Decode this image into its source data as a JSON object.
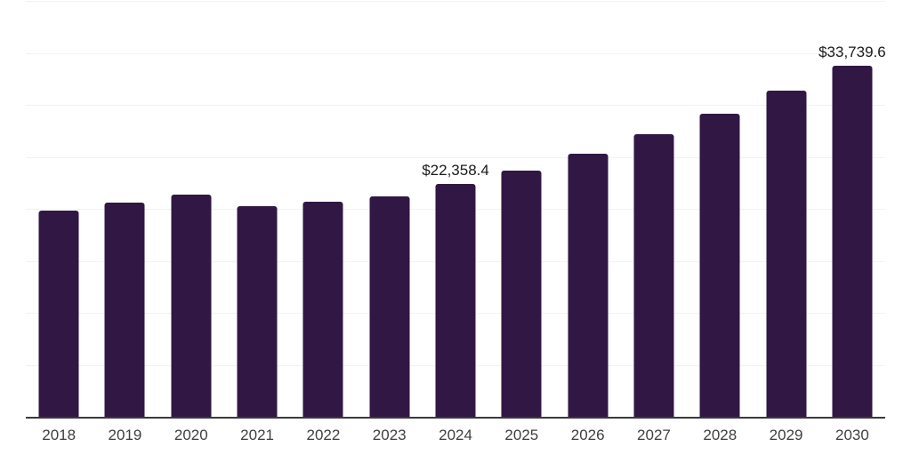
{
  "chart_data": {
    "type": "bar",
    "title": "",
    "xlabel": "",
    "ylabel": "",
    "categories": [
      "2018",
      "2019",
      "2020",
      "2021",
      "2022",
      "2023",
      "2024",
      "2025",
      "2026",
      "2027",
      "2028",
      "2029",
      "2030"
    ],
    "values": [
      19870,
      20640,
      21370,
      20260,
      20650,
      21240,
      22358.4,
      23680,
      25300,
      27220,
      29150,
      31410,
      33739.6
    ],
    "data_labels": [
      "",
      "",
      "",
      "",
      "",
      "",
      "$22,358.4",
      "",
      "",
      "",
      "",
      "",
      "$33,739.6"
    ],
    "ylim": [
      0,
      40000
    ],
    "gridline_step": 5000,
    "grid": "horizontal-only",
    "legend": "none",
    "colors": {
      "bar": "#311744",
      "gridline": "#f2f2f2",
      "axis": "#3a3a3a",
      "value_label": "#1a1a1a",
      "tick_label": "#3f3f3f",
      "background": "#ffffff"
    }
  }
}
